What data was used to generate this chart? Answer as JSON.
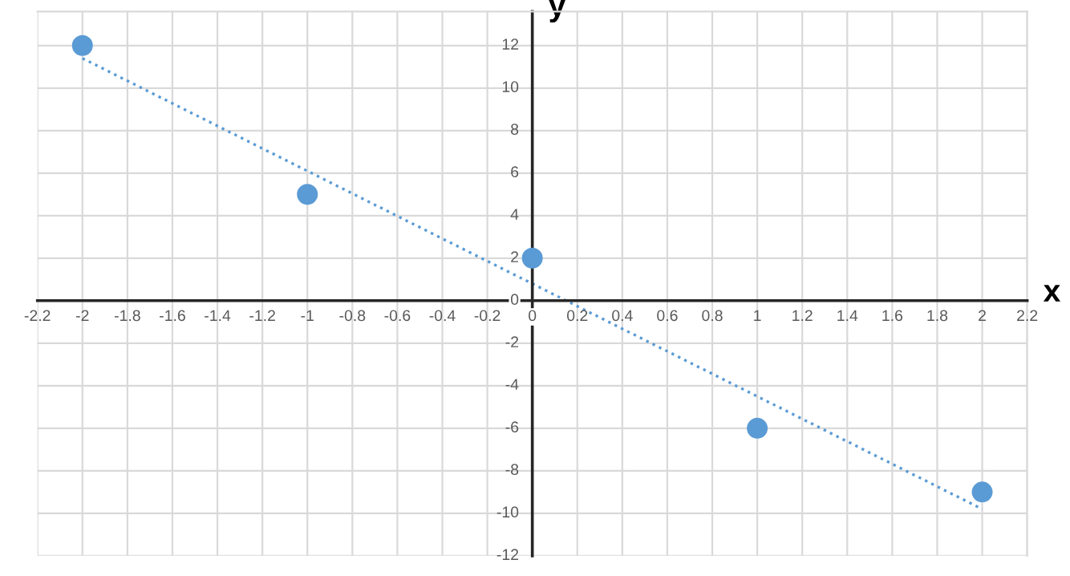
{
  "chart_data": {
    "type": "scatter",
    "xlabel": "x",
    "ylabel": "y",
    "x": [
      -2,
      -1,
      0,
      1,
      2
    ],
    "series": [
      {
        "color": "#5b9bd5",
        "values": [
          12,
          5,
          2,
          -6,
          -9
        ],
        "marker": "circle"
      },
      {
        "type": "line",
        "color": "#5b9bd5",
        "x": [
          -2,
          2
        ],
        "values": [
          11.4,
          -9.8
        ],
        "line_style": "dotted",
        "marker": "none"
      }
    ],
    "xlim": [
      -2.2,
      2.2
    ],
    "ylim": [
      -12,
      13.6
    ],
    "xticks": [
      -2.2,
      -2,
      -1.8,
      -1.6,
      -1.4,
      -1.2,
      -1,
      -0.8,
      -0.6,
      -0.4,
      -0.2,
      0,
      0.2,
      0.4,
      0.6,
      0.8,
      1,
      1.2,
      1.4,
      1.6,
      1.8,
      2,
      2.2
    ],
    "yticks": [
      -12,
      -10,
      -8,
      -6,
      -4,
      -2,
      0,
      2,
      4,
      6,
      8,
      10,
      12
    ],
    "grid": true,
    "legend": false
  }
}
